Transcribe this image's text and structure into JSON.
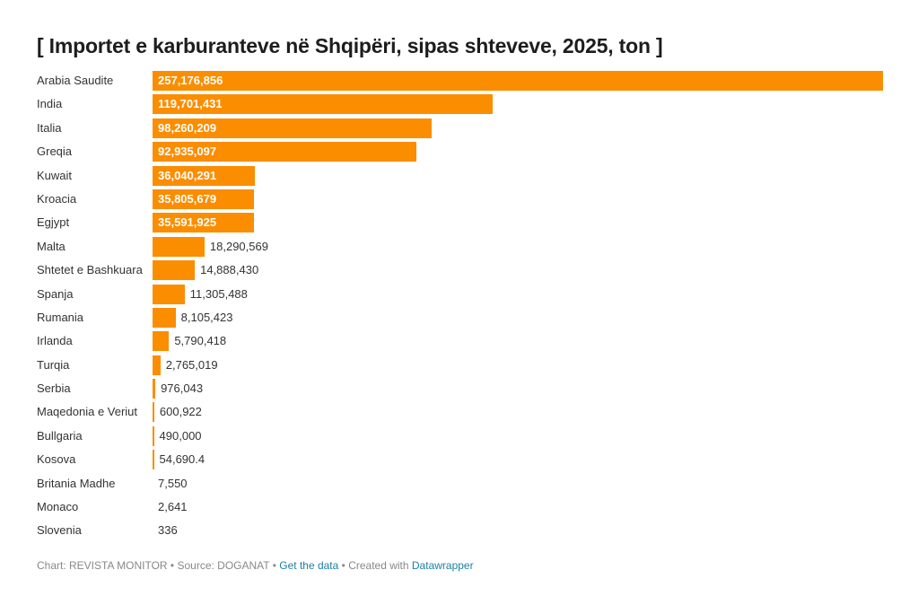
{
  "header": {
    "title": "[ Importet e karburanteve në Shqipëri, sipas shteveve, 2025, ton ]"
  },
  "footer": {
    "chart_prefix": "Chart: REVISTA MONITOR",
    "sep1": " • ",
    "source": "Source: DOGANAT",
    "sep2": " • ",
    "get_data": "Get the data",
    "sep3": " • ",
    "created_with": "Created with ",
    "datawrapper": "Datawrapper"
  },
  "colors": {
    "bar": "#fb8d00",
    "link": "#1d81a2"
  },
  "chart_data": {
    "type": "bar",
    "orientation": "horizontal",
    "title": "[ Importet e karburanteve në Shqipëri, sipas shteveve, 2025, ton ]",
    "xlabel": "",
    "ylabel": "",
    "unit": "ton",
    "grid": false,
    "legend": null,
    "categories": [
      "Arabia Saudite",
      "India",
      "Italia",
      "Greqia",
      "Kuwait",
      "Kroacia",
      "Egjypt",
      "Malta",
      "Shtetet e Bashkuara",
      "Spanja",
      "Rumania",
      "Irlanda",
      "Turqia",
      "Serbia",
      "Maqedonia e Veriut",
      "Bullgaria",
      "Kosova",
      "Britania Madhe",
      "Monaco",
      "Slovenia"
    ],
    "values": [
      257176856,
      119701431,
      98260209,
      92935097,
      36040291,
      35805679,
      35591925,
      18290569,
      14888430,
      11305488,
      8105423,
      5790418,
      2765019,
      976043,
      600922,
      490000,
      54690.4,
      7550,
      2641,
      336
    ],
    "value_labels": [
      "257,176,856",
      "119,701,431",
      "98,260,209",
      "92,935,097",
      "36,040,291",
      "35,805,679",
      "35,591,925",
      "18,290,569",
      "14,888,430",
      "11,305,488",
      "8,105,423",
      "5,790,418",
      "2,765,019",
      "976,043",
      "600,922",
      "490,000",
      "54,690.4",
      "7,550",
      "2,641",
      "336"
    ],
    "xlim": [
      0,
      257176856
    ]
  }
}
